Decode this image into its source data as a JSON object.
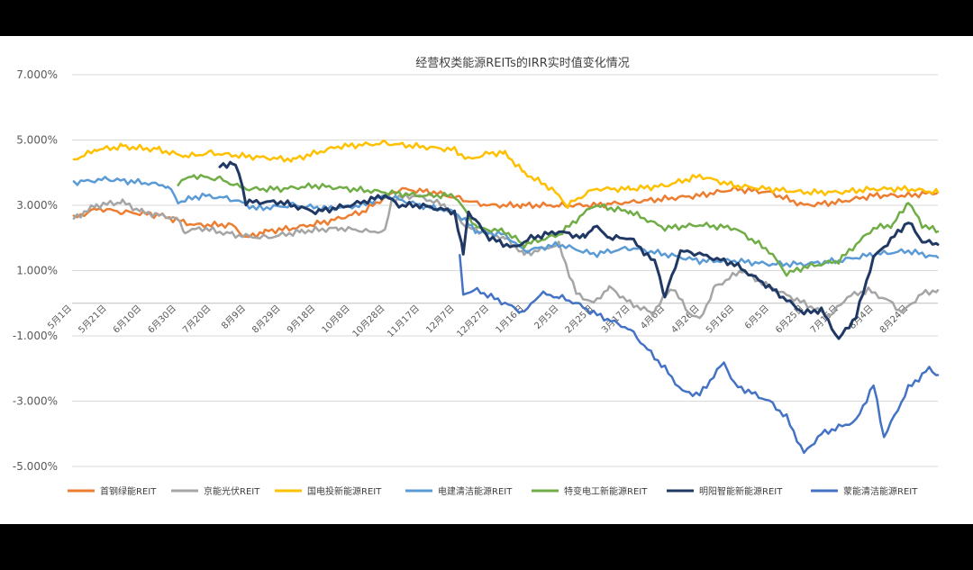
{
  "chart_data": {
    "type": "line",
    "title": "经营权类能源REITs的IRR实时值变化情况",
    "xlabel": "",
    "ylabel": "",
    "ylim": [
      -5,
      7
    ],
    "yticks": [
      7,
      5,
      3,
      1,
      -1,
      -3,
      -5
    ],
    "ytick_labels": [
      "7.000%",
      "5.000%",
      "3.000%",
      "1.000%",
      "-1.000%",
      "-3.000%",
      "-5.000%"
    ],
    "grid": true,
    "legend_position": "bottom",
    "x_start": "2023-05-01",
    "x_end": "2024-09-10",
    "x_ticks": [
      {
        "date": "2023-05-01",
        "label": "5月1日"
      },
      {
        "date": "2023-05-21",
        "label": "5月21日"
      },
      {
        "date": "2023-06-10",
        "label": "6月10日"
      },
      {
        "date": "2023-06-30",
        "label": "6月30日"
      },
      {
        "date": "2023-07-20",
        "label": "7月20日"
      },
      {
        "date": "2023-08-09",
        "label": "8月9日"
      },
      {
        "date": "2023-08-29",
        "label": "8月29日"
      },
      {
        "date": "2023-09-18",
        "label": "9月18日"
      },
      {
        "date": "2023-10-08",
        "label": "10月8日"
      },
      {
        "date": "2023-10-28",
        "label": "10月28日"
      },
      {
        "date": "2023-11-17",
        "label": "11月17日"
      },
      {
        "date": "2023-12-07",
        "label": "12月7日"
      },
      {
        "date": "2023-12-27",
        "label": "12月27日"
      },
      {
        "date": "2024-01-16",
        "label": "1月16日"
      },
      {
        "date": "2024-02-05",
        "label": "2月5日"
      },
      {
        "date": "2024-02-25",
        "label": "2月25日"
      },
      {
        "date": "2024-03-17",
        "label": "3月17日"
      },
      {
        "date": "2024-04-06",
        "label": "4月6日"
      },
      {
        "date": "2024-04-26",
        "label": "4月26日"
      },
      {
        "date": "2024-05-16",
        "label": "5月16日"
      },
      {
        "date": "2024-06-05",
        "label": "6月5日"
      },
      {
        "date": "2024-06-25",
        "label": "6月25日"
      },
      {
        "date": "2024-07-15",
        "label": "7月15日"
      },
      {
        "date": "2024-08-04",
        "label": "8月4日"
      },
      {
        "date": "2024-08-24",
        "label": "8月24日"
      }
    ],
    "series": [
      {
        "name": "首钢绿能REIT",
        "color": "#ED7D31",
        "points": [
          [
            "2023-05-02",
            2.6
          ],
          [
            "2023-05-15",
            2.9
          ],
          [
            "2023-05-30",
            2.8
          ],
          [
            "2023-06-20",
            2.7
          ],
          [
            "2023-07-10",
            2.4
          ],
          [
            "2023-08-01",
            2.4
          ],
          [
            "2023-08-09",
            2.0
          ],
          [
            "2023-08-20",
            2.2
          ],
          [
            "2023-09-05",
            2.3
          ],
          [
            "2023-09-25",
            2.5
          ],
          [
            "2023-10-15",
            2.8
          ],
          [
            "2023-11-05",
            3.5
          ],
          [
            "2023-11-25",
            3.4
          ],
          [
            "2023-12-10",
            3.2
          ],
          [
            "2023-12-25",
            3.0
          ],
          [
            "2024-01-15",
            3.0
          ],
          [
            "2024-02-05",
            3.0
          ],
          [
            "2024-02-25",
            3.0
          ],
          [
            "2024-03-17",
            3.1
          ],
          [
            "2024-04-06",
            3.2
          ],
          [
            "2024-04-26",
            3.3
          ],
          [
            "2024-05-16",
            3.5
          ],
          [
            "2024-06-05",
            3.4
          ],
          [
            "2024-06-25",
            3.0
          ],
          [
            "2024-07-15",
            3.1
          ],
          [
            "2024-08-04",
            3.3
          ],
          [
            "2024-08-24",
            3.3
          ],
          [
            "2024-09-10",
            3.4
          ]
        ]
      },
      {
        "name": "京能光伏REIT",
        "color": "#A5A5A5",
        "points": [
          [
            "2023-05-02",
            2.6
          ],
          [
            "2023-05-15",
            3.0
          ],
          [
            "2023-05-30",
            3.1
          ],
          [
            "2023-06-10",
            2.8
          ],
          [
            "2023-06-30",
            2.6
          ],
          [
            "2023-07-05",
            2.2
          ],
          [
            "2023-07-15",
            2.3
          ],
          [
            "2023-08-01",
            2.1
          ],
          [
            "2023-08-20",
            2.0
          ],
          [
            "2023-09-10",
            2.2
          ],
          [
            "2023-10-01",
            2.3
          ],
          [
            "2023-10-20",
            2.2
          ],
          [
            "2023-10-28",
            2.2
          ],
          [
            "2023-11-01",
            3.2
          ],
          [
            "2023-11-15",
            3.3
          ],
          [
            "2023-12-01",
            3.0
          ],
          [
            "2023-12-15",
            2.3
          ],
          [
            "2024-01-05",
            2.0
          ],
          [
            "2024-01-16",
            1.5
          ],
          [
            "2024-02-05",
            1.8
          ],
          [
            "2024-02-15",
            0.3
          ],
          [
            "2024-02-25",
            0.0
          ],
          [
            "2024-03-05",
            0.5
          ],
          [
            "2024-03-17",
            0.0
          ],
          [
            "2024-03-30",
            -0.3
          ],
          [
            "2024-04-10",
            0.5
          ],
          [
            "2024-04-20",
            -0.3
          ],
          [
            "2024-04-26",
            -0.5
          ],
          [
            "2024-05-05",
            0.5
          ],
          [
            "2024-05-20",
            1.0
          ],
          [
            "2024-06-05",
            0.5
          ],
          [
            "2024-06-25",
            0.0
          ],
          [
            "2024-07-10",
            -0.4
          ],
          [
            "2024-07-20",
            0.2
          ],
          [
            "2024-08-01",
            0.4
          ],
          [
            "2024-08-15",
            0.0
          ],
          [
            "2024-08-20",
            -0.3
          ],
          [
            "2024-09-01",
            0.3
          ],
          [
            "2024-09-10",
            0.4
          ]
        ]
      },
      {
        "name": "国电投新能源REIT",
        "color": "#FFC000",
        "points": [
          [
            "2023-05-02",
            4.4
          ],
          [
            "2023-05-15",
            4.7
          ],
          [
            "2023-05-30",
            4.8
          ],
          [
            "2023-06-20",
            4.7
          ],
          [
            "2023-07-05",
            4.5
          ],
          [
            "2023-07-20",
            4.6
          ],
          [
            "2023-08-09",
            4.5
          ],
          [
            "2023-09-05",
            4.4
          ],
          [
            "2023-10-01",
            4.8
          ],
          [
            "2023-10-28",
            4.9
          ],
          [
            "2023-11-17",
            4.8
          ],
          [
            "2023-12-07",
            4.7
          ],
          [
            "2023-12-15",
            4.4
          ],
          [
            "2023-12-27",
            4.6
          ],
          [
            "2024-01-05",
            4.6
          ],
          [
            "2024-01-16",
            4.0
          ],
          [
            "2024-02-01",
            3.5
          ],
          [
            "2024-02-10",
            3.0
          ],
          [
            "2024-02-25",
            3.5
          ],
          [
            "2024-03-17",
            3.5
          ],
          [
            "2024-04-06",
            3.6
          ],
          [
            "2024-04-26",
            3.9
          ],
          [
            "2024-05-16",
            3.6
          ],
          [
            "2024-06-05",
            3.5
          ],
          [
            "2024-06-25",
            3.4
          ],
          [
            "2024-07-15",
            3.4
          ],
          [
            "2024-08-04",
            3.5
          ],
          [
            "2024-08-24",
            3.5
          ],
          [
            "2024-09-10",
            3.4
          ]
        ]
      },
      {
        "name": "电建清洁能源REIT",
        "color": "#5B9BD5",
        "points": [
          [
            "2023-05-02",
            3.7
          ],
          [
            "2023-05-21",
            3.8
          ],
          [
            "2023-06-10",
            3.7
          ],
          [
            "2023-06-25",
            3.6
          ],
          [
            "2023-07-01",
            3.1
          ],
          [
            "2023-07-15",
            3.3
          ],
          [
            "2023-08-01",
            3.2
          ],
          [
            "2023-08-15",
            2.9
          ],
          [
            "2023-09-05",
            3.0
          ],
          [
            "2023-09-25",
            2.9
          ],
          [
            "2023-10-15",
            3.0
          ],
          [
            "2023-10-28",
            3.3
          ],
          [
            "2023-11-17",
            3.0
          ],
          [
            "2023-12-07",
            2.8
          ],
          [
            "2023-12-20",
            2.2
          ],
          [
            "2024-01-05",
            2.1
          ],
          [
            "2024-01-16",
            1.6
          ],
          [
            "2024-02-05",
            1.8
          ],
          [
            "2024-02-25",
            1.5
          ],
          [
            "2024-03-17",
            1.7
          ],
          [
            "2024-04-06",
            1.5
          ],
          [
            "2024-04-26",
            1.3
          ],
          [
            "2024-05-16",
            1.3
          ],
          [
            "2024-06-05",
            1.2
          ],
          [
            "2024-06-25",
            1.2
          ],
          [
            "2024-07-15",
            1.3
          ],
          [
            "2024-08-04",
            1.5
          ],
          [
            "2024-08-24",
            1.6
          ],
          [
            "2024-09-10",
            1.4
          ]
        ]
      },
      {
        "name": "特变电工新能源REIT",
        "color": "#70AD47",
        "points": [
          [
            "2023-07-01",
            3.7
          ],
          [
            "2023-07-10",
            3.9
          ],
          [
            "2023-07-25",
            3.8
          ],
          [
            "2023-08-09",
            3.5
          ],
          [
            "2023-08-29",
            3.5
          ],
          [
            "2023-09-18",
            3.6
          ],
          [
            "2023-10-08",
            3.5
          ],
          [
            "2023-10-28",
            3.4
          ],
          [
            "2023-11-17",
            3.3
          ],
          [
            "2023-12-07",
            3.3
          ],
          [
            "2023-12-20",
            2.3
          ],
          [
            "2024-01-05",
            2.2
          ],
          [
            "2024-01-16",
            1.8
          ],
          [
            "2024-02-05",
            2.1
          ],
          [
            "2024-02-25",
            3.0
          ],
          [
            "2024-03-17",
            2.8
          ],
          [
            "2024-04-06",
            2.3
          ],
          [
            "2024-04-26",
            2.4
          ],
          [
            "2024-05-16",
            2.3
          ],
          [
            "2024-06-05",
            1.6
          ],
          [
            "2024-06-15",
            0.9
          ],
          [
            "2024-06-25",
            1.1
          ],
          [
            "2024-07-15",
            1.3
          ],
          [
            "2024-08-04",
            2.3
          ],
          [
            "2024-08-15",
            2.4
          ],
          [
            "2024-08-24",
            3.1
          ],
          [
            "2024-09-01",
            2.4
          ],
          [
            "2024-09-10",
            2.2
          ]
        ]
      },
      {
        "name": "明阳智能新能源REIT",
        "color": "#203864",
        "points": [
          [
            "2023-07-25",
            4.2
          ],
          [
            "2023-08-01",
            4.3
          ],
          [
            "2023-08-05",
            4.0
          ],
          [
            "2023-08-09",
            3.1
          ],
          [
            "2023-08-29",
            3.1
          ],
          [
            "2023-09-18",
            2.8
          ],
          [
            "2023-10-08",
            3.0
          ],
          [
            "2023-10-28",
            3.3
          ],
          [
            "2023-11-05",
            3.0
          ],
          [
            "2023-11-17",
            3.0
          ],
          [
            "2023-12-07",
            2.8
          ],
          [
            "2023-12-12",
            1.5
          ],
          [
            "2023-12-15",
            2.8
          ],
          [
            "2023-12-27",
            2.0
          ],
          [
            "2024-01-10",
            1.7
          ],
          [
            "2024-01-20",
            2.0
          ],
          [
            "2024-02-05",
            2.2
          ],
          [
            "2024-02-20",
            2.0
          ],
          [
            "2024-02-25",
            2.4
          ],
          [
            "2024-03-05",
            2.0
          ],
          [
            "2024-03-17",
            2.0
          ],
          [
            "2024-04-01",
            1.2
          ],
          [
            "2024-04-06",
            0.2
          ],
          [
            "2024-04-15",
            1.6
          ],
          [
            "2024-04-26",
            1.5
          ],
          [
            "2024-05-16",
            1.2
          ],
          [
            "2024-06-05",
            0.5
          ],
          [
            "2024-06-25",
            -0.3
          ],
          [
            "2024-07-05",
            -0.2
          ],
          [
            "2024-07-15",
            -1.1
          ],
          [
            "2024-07-25",
            -0.4
          ],
          [
            "2024-08-04",
            1.4
          ],
          [
            "2024-08-24",
            2.5
          ],
          [
            "2024-09-01",
            1.9
          ],
          [
            "2024-09-10",
            1.8
          ]
        ]
      },
      {
        "name": "蒙能清洁能源REIT",
        "color": "#4472C4",
        "points": [
          [
            "2023-12-10",
            1.4
          ],
          [
            "2023-12-12",
            0.3
          ],
          [
            "2023-12-20",
            0.4
          ],
          [
            "2024-01-05",
            0.0
          ],
          [
            "2024-01-16",
            -0.3
          ],
          [
            "2024-01-25",
            0.3
          ],
          [
            "2024-02-05",
            0.2
          ],
          [
            "2024-02-15",
            0.0
          ],
          [
            "2024-02-25",
            -0.3
          ],
          [
            "2024-03-17",
            -0.8
          ],
          [
            "2024-03-25",
            -1.3
          ],
          [
            "2024-04-06",
            -2.0
          ],
          [
            "2024-04-16",
            -2.7
          ],
          [
            "2024-04-26",
            -2.8
          ],
          [
            "2024-05-10",
            -1.8
          ],
          [
            "2024-05-16",
            -2.5
          ],
          [
            "2024-06-05",
            -3.0
          ],
          [
            "2024-06-15",
            -3.5
          ],
          [
            "2024-06-25",
            -4.6
          ],
          [
            "2024-07-05",
            -4.0
          ],
          [
            "2024-07-15",
            -3.8
          ],
          [
            "2024-07-25",
            -3.6
          ],
          [
            "2024-08-04",
            -2.5
          ],
          [
            "2024-08-10",
            -4.1
          ],
          [
            "2024-08-24",
            -2.6
          ],
          [
            "2024-09-01",
            -2.2
          ],
          [
            "2024-09-05",
            -2.0
          ],
          [
            "2024-09-10",
            -2.2
          ]
        ]
      }
    ]
  }
}
